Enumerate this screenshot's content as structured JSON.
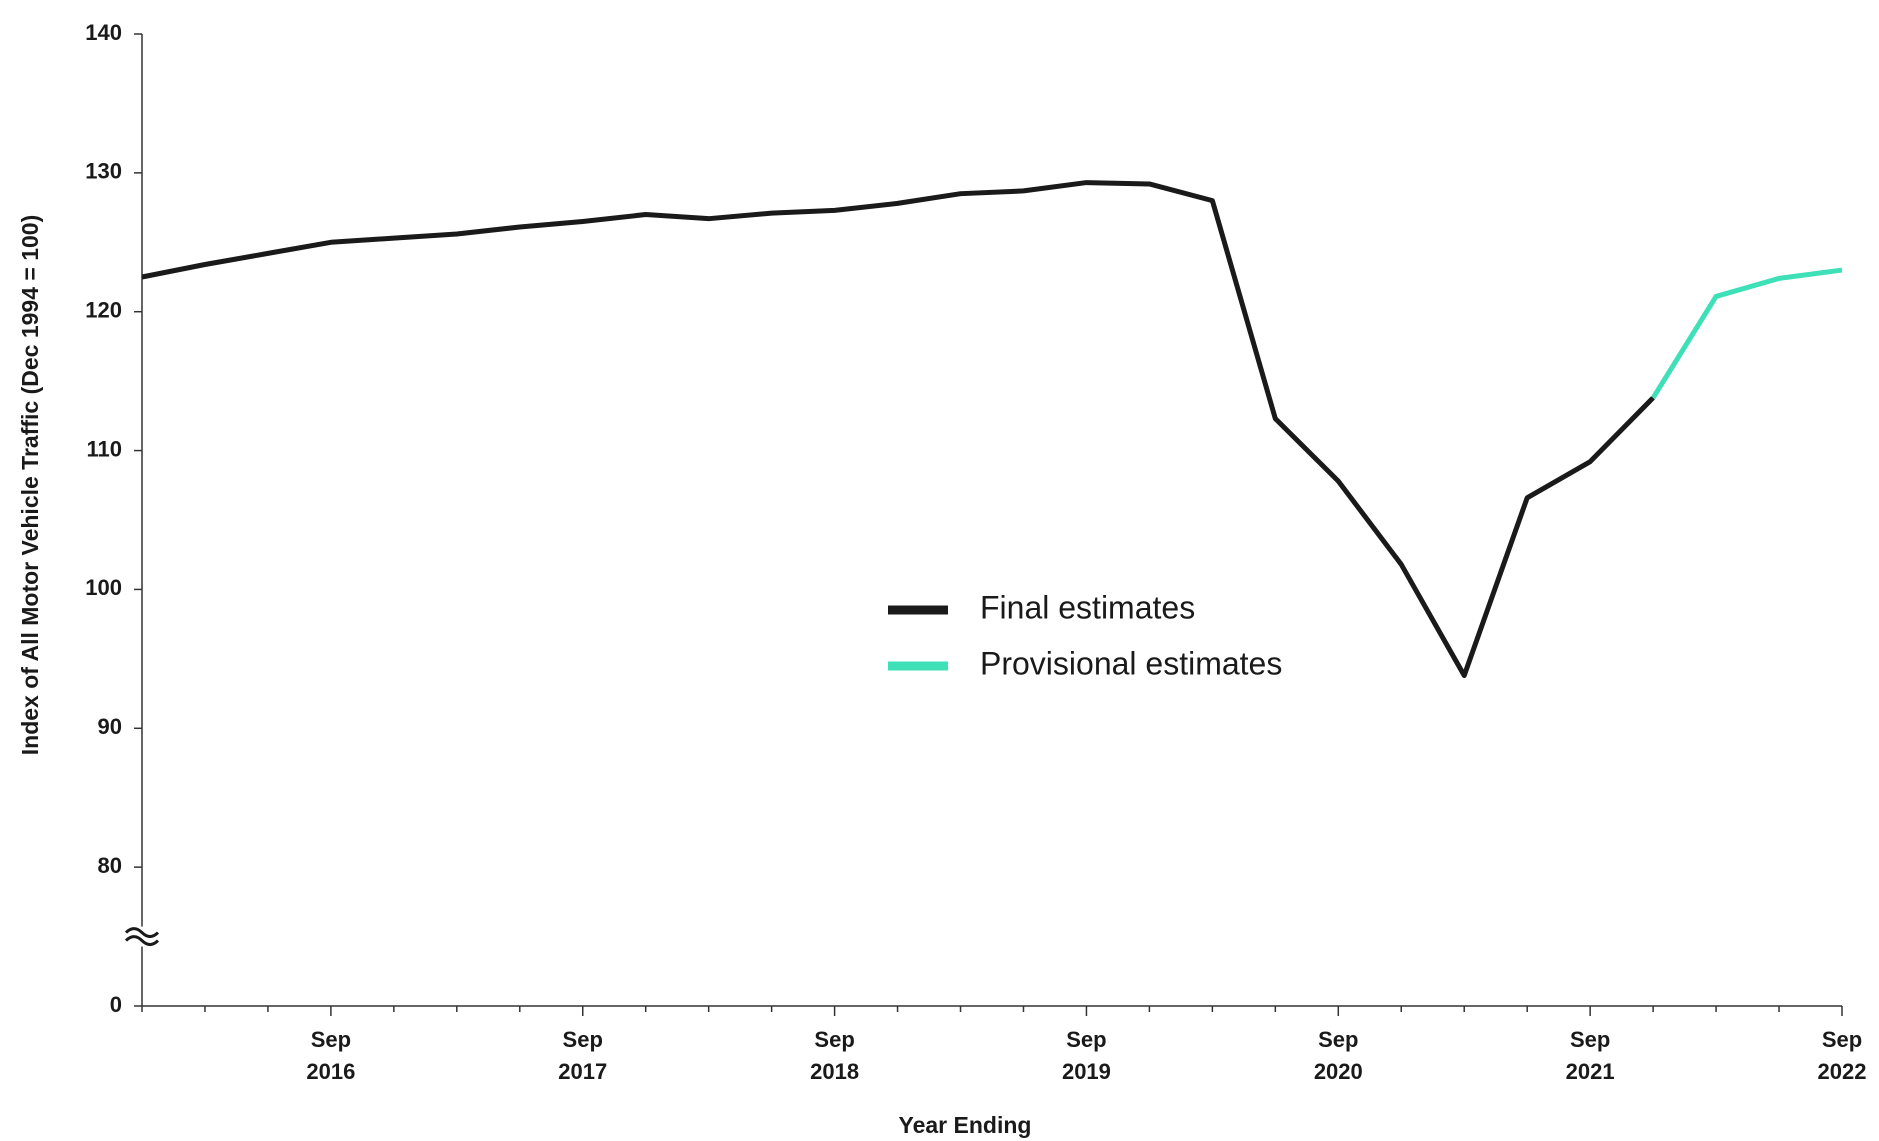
{
  "chart_data": {
    "type": "line",
    "x_label": "Year Ending",
    "y_label": "Index of All Motor Vehicle Traffic (Dec 1994 = 100)",
    "categories": [
      null,
      null,
      null,
      "Sep 2016",
      null,
      null,
      null,
      "Sep 2017",
      null,
      null,
      null,
      "Sep 2018",
      null,
      null,
      null,
      "Sep 2019",
      null,
      null,
      null,
      "Sep 2020",
      null,
      null,
      null,
      "Sep 2021",
      null,
      null,
      null,
      "Sep 2022"
    ],
    "series": [
      {
        "name": "Final estimates",
        "color": "#1a1a1a",
        "values": [
          122.5,
          123.4,
          124.2,
          125.0,
          125.3,
          125.6,
          126.1,
          126.5,
          127.0,
          126.7,
          127.1,
          127.3,
          127.8,
          128.5,
          128.7,
          129.3,
          129.2,
          128.0,
          112.3,
          107.8,
          101.8,
          93.8,
          106.6,
          109.2,
          113.8,
          null,
          null,
          null
        ]
      },
      {
        "name": "Provisional estimates",
        "color": "#3ee0b8",
        "values": [
          null,
          null,
          null,
          null,
          null,
          null,
          null,
          null,
          null,
          null,
          null,
          null,
          null,
          null,
          null,
          null,
          null,
          null,
          null,
          null,
          null,
          null,
          null,
          null,
          113.8,
          121.1,
          122.4,
          123.0
        ]
      }
    ],
    "ylim": [
      0,
      140
    ],
    "y_break": [
      0,
      80
    ],
    "yticks": [
      0,
      80,
      90,
      100,
      110,
      120,
      130,
      140
    ],
    "grid": false
  }
}
